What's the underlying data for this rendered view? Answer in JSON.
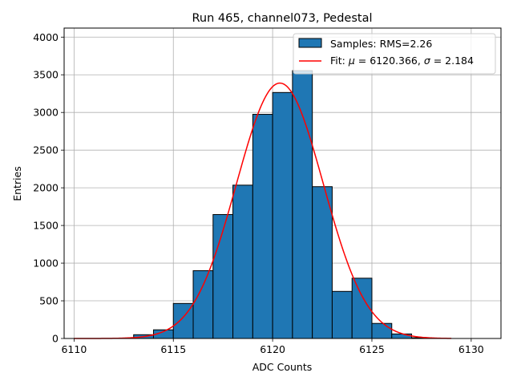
{
  "chart_data": {
    "type": "bar",
    "title": "Run 465, channel073, Pedestal",
    "xlabel": "ADC Counts",
    "ylabel": "Entries",
    "xlim": [
      6109.5,
      6131.5
    ],
    "ylim": [
      0,
      4120
    ],
    "xticks": [
      6110,
      6115,
      6120,
      6125,
      6130
    ],
    "yticks": [
      0,
      500,
      1000,
      1500,
      2000,
      2500,
      3000,
      3500,
      4000
    ],
    "grid": true,
    "legend_position": "top-right",
    "bin_width": 1,
    "series": [
      {
        "name": "Samples: RMS=2.26",
        "kind": "histogram",
        "color": "#1f77b4",
        "bin_edges": [
          6110,
          6111,
          6112,
          6113,
          6114,
          6115,
          6116,
          6117,
          6118,
          6119,
          6120,
          6121,
          6122,
          6123,
          6124,
          6125,
          6126,
          6127,
          6128,
          6129,
          6130,
          6131
        ],
        "values": [
          0,
          0,
          0,
          50,
          115,
          465,
          900,
          1645,
          2035,
          2975,
          3265,
          3555,
          2015,
          625,
          800,
          200,
          60,
          10,
          0,
          0,
          0
        ]
      },
      {
        "name_prefix": "Fit: ",
        "name_mu_symbol": "μ",
        "name_mid": " = 6120.366, ",
        "name_sigma_symbol": "σ",
        "name_suffix": " = 2.184",
        "kind": "gaussian",
        "color": "#ff0000",
        "mu": 6120.366,
        "sigma": 2.184,
        "amplitude": 3390,
        "x_range": [
          6110,
          6129
        ]
      }
    ]
  }
}
